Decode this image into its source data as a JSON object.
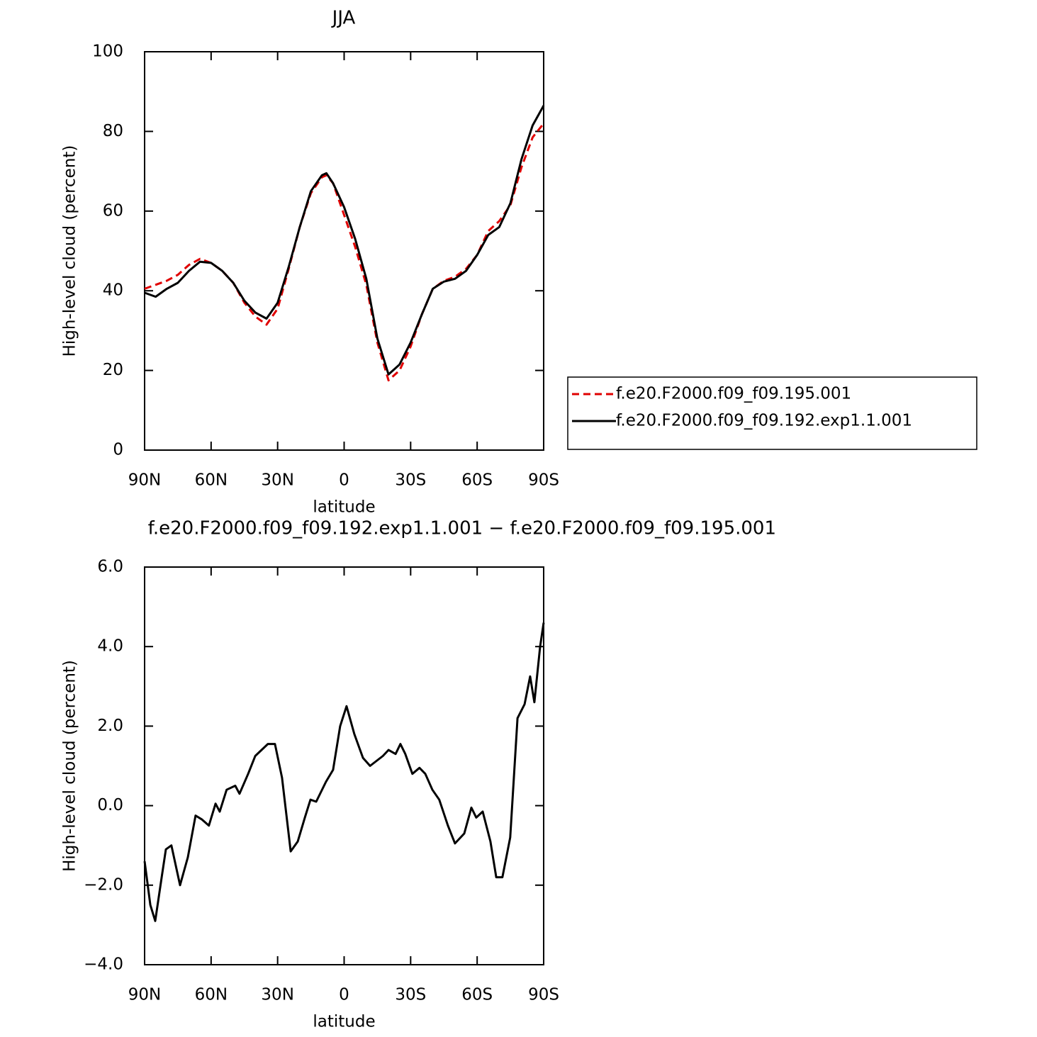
{
  "chart_data": [
    {
      "type": "line",
      "title": "JJA",
      "xlabel": "latitude",
      "ylabel": "High-level cloud (percent)",
      "xlim": [
        90,
        -90
      ],
      "ylim": [
        0,
        100
      ],
      "xticks": [
        {
          "value": 90,
          "label": "90N"
        },
        {
          "value": 60,
          "label": "60N"
        },
        {
          "value": 30,
          "label": "30N"
        },
        0,
        {
          "value": -30,
          "label": "30S"
        },
        {
          "value": -60,
          "label": "60S"
        },
        {
          "value": -90,
          "label": "90S"
        }
      ],
      "yticks": [
        0,
        20,
        40,
        60,
        80,
        100
      ],
      "legend": "right",
      "x": [
        90,
        85,
        80,
        75,
        70,
        65,
        60,
        55,
        50,
        45,
        40,
        35,
        30,
        25,
        20,
        15,
        10,
        8,
        5,
        0,
        -5,
        -10,
        -15,
        -20,
        -25,
        -30,
        -35,
        -40,
        -45,
        -50,
        -55,
        -60,
        -65,
        -70,
        -75,
        -80,
        -85,
        -90
      ],
      "series": [
        {
          "name": "f.e20.F2000.f09_f09.195.001",
          "color": "#e00000",
          "linestyle": "dashed",
          "values": [
            40.5,
            41.5,
            42.5,
            44,
            46.5,
            48,
            47,
            45,
            42,
            37,
            33.5,
            31.5,
            35.5,
            45.5,
            56,
            64.5,
            68.5,
            69,
            67,
            59,
            51,
            41.5,
            27,
            17.5,
            20,
            26,
            34,
            40.5,
            42.5,
            43.5,
            45.5,
            49,
            55,
            57.5,
            61.5,
            71,
            78.5,
            82
          ]
        },
        {
          "name": "f.e20.F2000.f09_f09.192.exp1.1.001",
          "color": "#000000",
          "linestyle": "solid",
          "values": [
            39.5,
            38.5,
            40.5,
            42,
            45,
            47.3,
            47,
            45,
            42,
            37.5,
            34.5,
            33,
            37,
            46,
            56,
            65,
            69,
            69.5,
            67,
            61,
            53,
            43,
            28,
            19,
            21.5,
            27,
            34,
            40.5,
            42.3,
            43,
            45,
            49,
            54,
            56,
            62,
            73,
            81.5,
            86.5
          ]
        }
      ]
    },
    {
      "type": "line",
      "title": "f.e20.F2000.f09_f09.192.exp1.1.001 − f.e20.F2000.f09_f09.195.001",
      "xlabel": "latitude",
      "ylabel": "High-level cloud (percent)",
      "xlim": [
        90,
        -90
      ],
      "ylim": [
        -4,
        6
      ],
      "xticks": [
        {
          "value": 90,
          "label": "90N"
        },
        {
          "value": 60,
          "label": "60N"
        },
        {
          "value": 30,
          "label": "30N"
        },
        0,
        {
          "value": -30,
          "label": "30S"
        },
        {
          "value": -60,
          "label": "60S"
        },
        {
          "value": -90,
          "label": "90S"
        }
      ],
      "yticks": [
        {
          "value": -4,
          "label": "−4.0"
        },
        {
          "value": -2,
          "label": "−2.0"
        },
        {
          "value": 0,
          "label": "0.0"
        },
        {
          "value": 2,
          "label": "2.0"
        },
        {
          "value": 4,
          "label": "4.0"
        },
        {
          "value": 6,
          "label": "6.0"
        }
      ],
      "color": "#000000",
      "x": [
        90,
        87.4,
        85.2,
        82.3,
        80.4,
        77.9,
        74,
        70.5,
        67,
        64.1,
        61,
        58,
        56.1,
        53,
        49.1,
        47.2,
        43.3,
        40.1,
        34.4,
        31.2,
        28,
        24.1,
        20.9,
        17.7,
        15.2,
        12.6,
        8.2,
        5,
        1.8,
        -1.1,
        -4.6,
        -8.5,
        -11.7,
        -17.5,
        -20,
        -23.2,
        -25.4,
        -27.6,
        -30.8,
        -34,
        -36.6,
        -39.8,
        -42.9,
        -46.8,
        -50,
        -54.2,
        -57.4,
        -59.6,
        -62.5,
        -66,
        -68.6,
        -71.4,
        -74.9,
        -78.2,
        -81.4,
        -83.9,
        -85.8,
        -88.4,
        -90
      ],
      "values": [
        -1.4,
        -2.5,
        -2.9,
        -1.8,
        -1.1,
        -1.0,
        -2.0,
        -1.3,
        -0.25,
        -0.35,
        -0.5,
        0.05,
        -0.15,
        0.4,
        0.5,
        0.3,
        0.8,
        1.25,
        1.55,
        1.55,
        0.7,
        -1.15,
        -0.9,
        -0.3,
        0.15,
        0.1,
        0.6,
        0.9,
        2.0,
        2.5,
        1.8,
        1.2,
        1.0,
        1.25,
        1.4,
        1.3,
        1.55,
        1.3,
        0.8,
        0.95,
        0.8,
        0.4,
        0.15,
        -0.5,
        -0.95,
        -0.7,
        -0.05,
        -0.3,
        -0.15,
        -0.9,
        -1.8,
        -1.8,
        -0.8,
        2.2,
        2.55,
        3.25,
        2.6,
        4.0,
        4.6
      ]
    }
  ]
}
